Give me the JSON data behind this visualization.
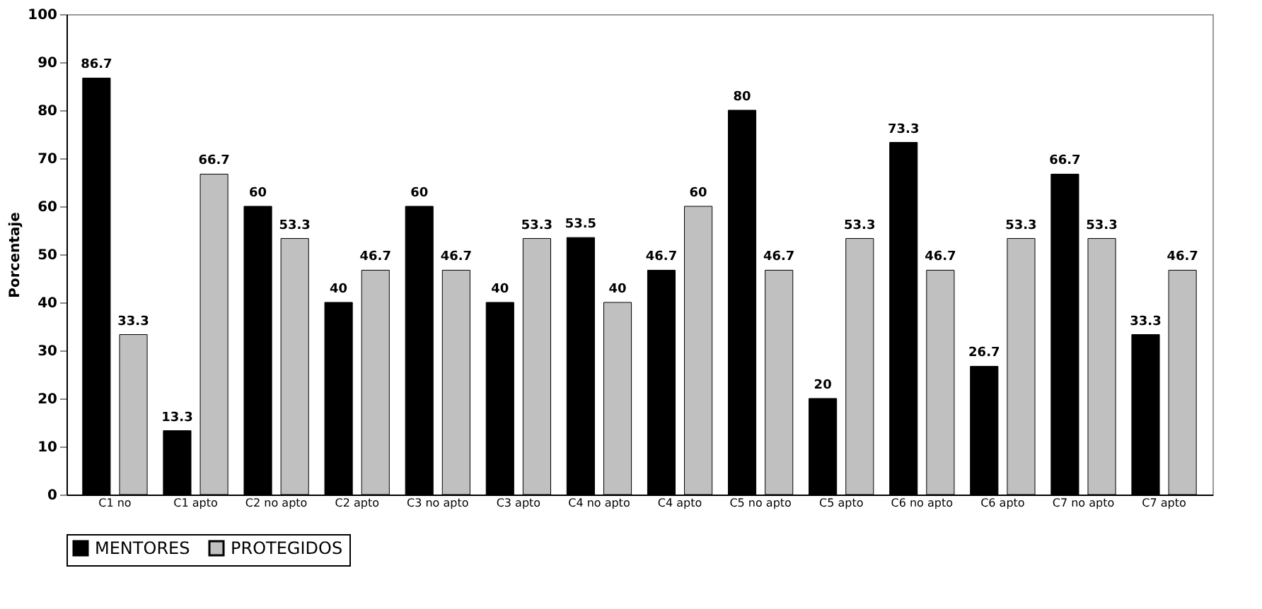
{
  "chart_data": {
    "type": "bar",
    "ylabel": "Porcentaje",
    "categories": [
      "C1 no",
      "C1 apto",
      "C2 no apto",
      "C2 apto",
      "C3 no apto",
      "C3 apto",
      "C4 no apto",
      "C4 apto",
      "C5 no apto",
      "C5 apto",
      "C6 no apto",
      "C6 apto",
      "C7 no apto",
      "C7 apto"
    ],
    "series": [
      {
        "name": "MENTORES",
        "color": "#000000",
        "values": [
          86.7,
          13.3,
          60,
          40,
          60,
          40,
          53.5,
          46.7,
          80,
          20,
          73.3,
          26.7,
          66.7,
          33.3
        ]
      },
      {
        "name": "PROTEGIDOS",
        "color": "#c0c0c0",
        "values": [
          33.3,
          66.7,
          53.3,
          46.7,
          46.7,
          53.3,
          40,
          60,
          46.7,
          53.3,
          46.7,
          53.3,
          53.3,
          46.7
        ]
      }
    ],
    "ylim": [
      0,
      100
    ],
    "yticks": [
      0,
      10,
      20,
      30,
      40,
      50,
      60,
      70,
      80,
      90,
      100
    ],
    "data_labels": true,
    "legend": "bottom",
    "grid": false
  }
}
